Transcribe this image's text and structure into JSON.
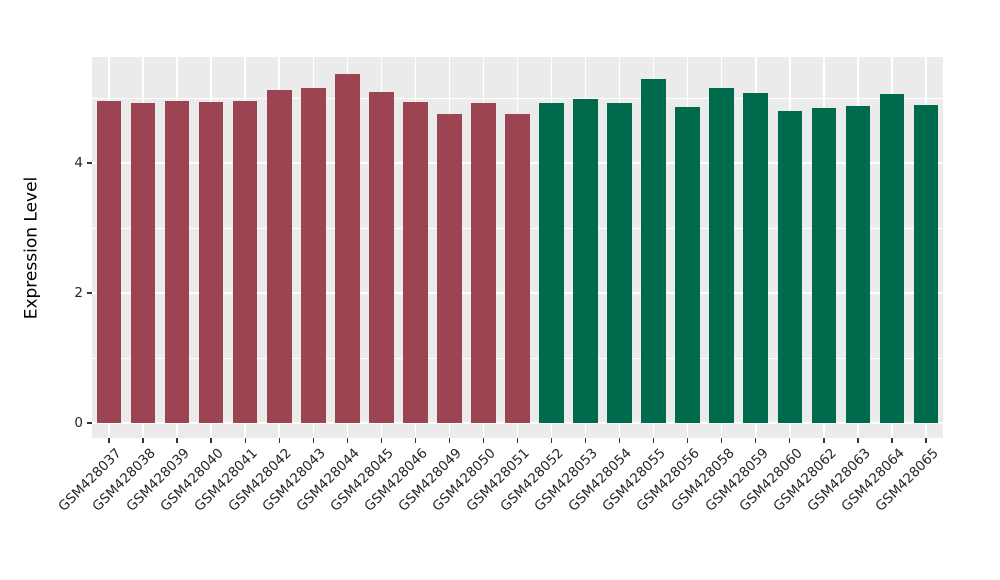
{
  "chart_data": {
    "type": "bar",
    "title": "",
    "xlabel": "",
    "ylabel": "Expression Level",
    "ylim": [
      0,
      5.64
    ],
    "yticks": [
      0,
      2,
      4
    ],
    "yticks_minor": [
      1,
      3,
      5
    ],
    "grid": "on",
    "legend": "none",
    "plot_background": "#ebebeb",
    "gridline_color": "#ffffff",
    "axis_text_color": "#262626",
    "bar_colors": {
      "maroon": "#9d4452",
      "green": "#006b4c"
    },
    "categories": [
      "GSM428037",
      "GSM428038",
      "GSM428039",
      "GSM428040",
      "GSM428041",
      "GSM428042",
      "GSM428043",
      "GSM428044",
      "GSM428045",
      "GSM428046",
      "GSM428049",
      "GSM428050",
      "GSM428051",
      "GSM428052",
      "GSM428053",
      "GSM428054",
      "GSM428055",
      "GSM428056",
      "GSM428058",
      "GSM428059",
      "GSM428060",
      "GSM428062",
      "GSM428063",
      "GSM428064",
      "GSM428065"
    ],
    "values": [
      4.96,
      4.93,
      4.96,
      4.94,
      4.95,
      5.12,
      5.15,
      5.37,
      5.1,
      4.94,
      4.76,
      4.93,
      4.76,
      4.93,
      4.98,
      4.92,
      5.3,
      4.86,
      5.15,
      5.08,
      4.8,
      4.85,
      4.88,
      5.06,
      4.9
    ],
    "colors": [
      "maroon",
      "maroon",
      "maroon",
      "maroon",
      "maroon",
      "maroon",
      "maroon",
      "maroon",
      "maroon",
      "maroon",
      "maroon",
      "maroon",
      "maroon",
      "green",
      "green",
      "green",
      "green",
      "green",
      "green",
      "green",
      "green",
      "green",
      "green",
      "green",
      "green"
    ]
  }
}
